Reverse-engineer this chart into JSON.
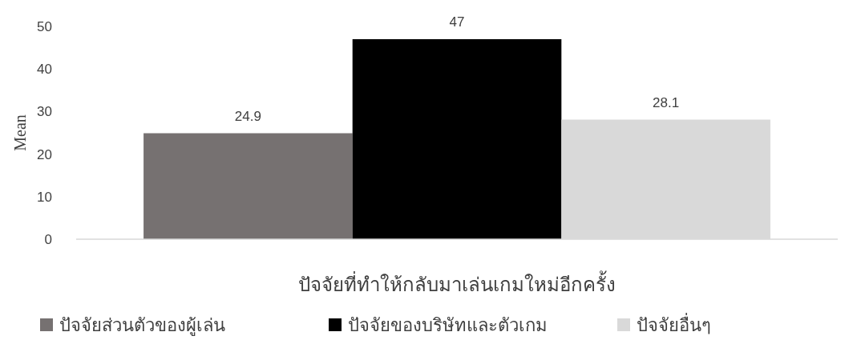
{
  "chart_data": {
    "type": "bar",
    "xlabel": "ปัจจัยที่ทำให้กลับมาเล่นเกมใหม่อีกครั้ง",
    "ylabel": "Mean",
    "categories": [
      null
    ],
    "series": [
      {
        "name": "ปัจจัยส่วนตัวของผู้เล่น",
        "color": "#767171",
        "values": [
          24.9
        ]
      },
      {
        "name": "ปัจจัยของบริษัทและตัวเกม",
        "color": "#000000",
        "values": [
          47
        ]
      },
      {
        "name": "ปัจจัยอื่นๆ",
        "color": "#d9d9d9",
        "values": [
          28.1
        ]
      }
    ],
    "ylim": [
      0,
      50
    ],
    "yticks": [
      0,
      10,
      20,
      30,
      40,
      50
    ],
    "data_labels": true,
    "legend": "bottom"
  }
}
